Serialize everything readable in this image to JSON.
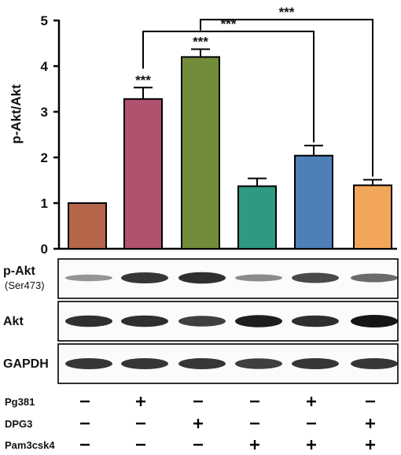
{
  "chart_data": {
    "type": "bar",
    "ylabel": "p-Akt/Akt",
    "ylim": [
      0,
      5
    ],
    "yticks": [
      "0",
      "1",
      "2",
      "3",
      "4",
      "5"
    ],
    "values": [
      1.0,
      3.28,
      4.2,
      1.37,
      2.04,
      1.39
    ],
    "errors": [
      0.0,
      0.25,
      0.17,
      0.17,
      0.22,
      0.12
    ],
    "colors": [
      "#b5664a",
      "#b0516e",
      "#728c3a",
      "#2f9a82",
      "#4e7fb6",
      "#f2a65a"
    ],
    "significance_above_bars": [
      "",
      "***",
      "***",
      "",
      "",
      ""
    ],
    "brackets": [
      {
        "from": 1,
        "to": 4,
        "label": "***",
        "y": 4.76
      },
      {
        "from": 2,
        "to": 5,
        "label": "***",
        "y": 5.02
      }
    ]
  },
  "blots": [
    {
      "label": "p-Akt",
      "sublabel": "(Ser473)"
    },
    {
      "label": "Akt",
      "sublabel": ""
    },
    {
      "label": "GAPDH",
      "sublabel": ""
    }
  ],
  "conditions": [
    {
      "name": "Pg381",
      "signs": [
        "−",
        "+",
        "−",
        "−",
        "+",
        "−"
      ]
    },
    {
      "name": "DPG3",
      "signs": [
        "−",
        "−",
        "+",
        "−",
        "−",
        "+"
      ]
    },
    {
      "name": "Pam3csk4",
      "signs": [
        "−",
        "−",
        "−",
        "+",
        "+",
        "+"
      ]
    }
  ],
  "blot_intensity": {
    "p-Akt": [
      0.25,
      0.8,
      0.85,
      0.3,
      0.7,
      0.5
    ],
    "Akt": [
      0.85,
      0.85,
      0.75,
      0.95,
      0.85,
      1.0
    ],
    "GAPDH": [
      0.8,
      0.8,
      0.8,
      0.75,
      0.8,
      0.8
    ]
  }
}
